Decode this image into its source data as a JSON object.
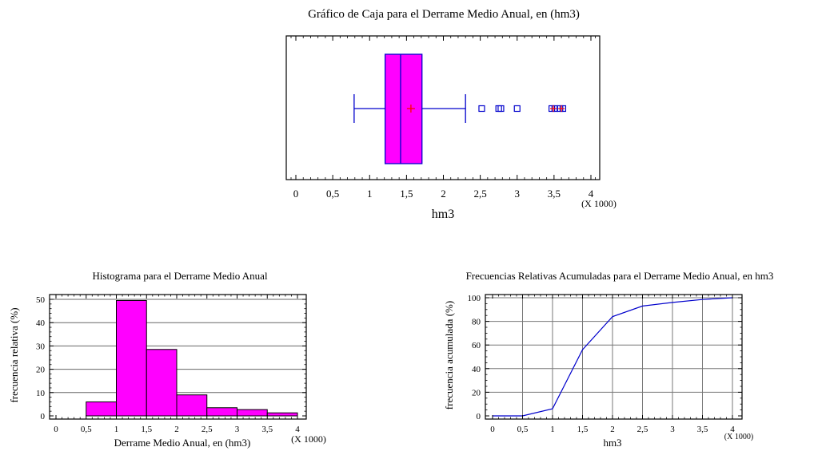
{
  "chart_data": [
    {
      "type": "box",
      "title": "Gráfico de Caja para el Derrame Medio Anual, en (hm3)",
      "xlabel": "hm3",
      "x_multiplier": "(X 1000)",
      "xlim": [
        0,
        4
      ],
      "x_ticks": [
        "0",
        "0,5",
        "1",
        "1,5",
        "2",
        "2,5",
        "3",
        "3,5",
        "4"
      ],
      "box": {
        "whisker_low": 0.79,
        "q1": 1.21,
        "median": 1.42,
        "q3": 1.71,
        "whisker_high": 2.3,
        "mean": 1.56
      },
      "outliers": [
        2.52,
        2.75,
        2.78,
        3.0,
        3.47,
        3.51,
        3.58,
        3.62
      ],
      "far_outliers": [
        3.49,
        3.6
      ],
      "colors": {
        "box_fill": "#ff00ff",
        "box_edge": "#0000cc",
        "mean_marker": "#ff0000",
        "outlier": "#0000cc"
      }
    },
    {
      "type": "bar",
      "title": "Histograma para el Derrame Medio Anual",
      "xlabel": "Derrame Medio Anual, en (hm3)",
      "ylabel": "frecuencia relativa (%)",
      "x_multiplier": "(X 1000)",
      "xlim": [
        0,
        4
      ],
      "ylim": [
        0,
        50
      ],
      "x_ticks": [
        "0",
        "0,5",
        "1",
        "1,5",
        "2",
        "2,5",
        "3",
        "3,5",
        "4"
      ],
      "y_ticks": [
        "0",
        "10",
        "20",
        "30",
        "40",
        "50"
      ],
      "bins": [
        {
          "from": 0.5,
          "to": 1.0,
          "value": 6
        },
        {
          "from": 1.0,
          "to": 1.5,
          "value": 49.5
        },
        {
          "from": 1.5,
          "to": 2.0,
          "value": 28.5
        },
        {
          "from": 2.0,
          "to": 2.5,
          "value": 9
        },
        {
          "from": 2.5,
          "to": 3.0,
          "value": 3.5
        },
        {
          "from": 3.0,
          "to": 3.5,
          "value": 2.7
        },
        {
          "from": 3.5,
          "to": 4.0,
          "value": 1.3
        }
      ],
      "grid": true,
      "colors": {
        "bar_fill": "#ff00ff",
        "bar_edge": "#000000"
      }
    },
    {
      "type": "line",
      "title": "Frecuencias Relativas Acumuladas para el Derrame Medio Anual, en hm3",
      "xlabel": "hm3",
      "ylabel": "frecuencia acumulada (%)",
      "x_multiplier": "(X 1000)",
      "xlim": [
        0,
        4
      ],
      "ylim": [
        0,
        100
      ],
      "x_ticks": [
        "0",
        "0,5",
        "1",
        "1,5",
        "2",
        "2,5",
        "3",
        "3,5",
        "4"
      ],
      "y_ticks": [
        "0",
        "20",
        "40",
        "60",
        "80",
        "100"
      ],
      "x": [
        0,
        0.5,
        1.0,
        1.5,
        2.0,
        2.5,
        3.0,
        3.5,
        4.0
      ],
      "y": [
        0,
        0,
        6,
        56,
        84,
        93,
        96,
        98.5,
        100
      ],
      "grid": true,
      "colors": {
        "line": "#0000cc"
      }
    }
  ]
}
